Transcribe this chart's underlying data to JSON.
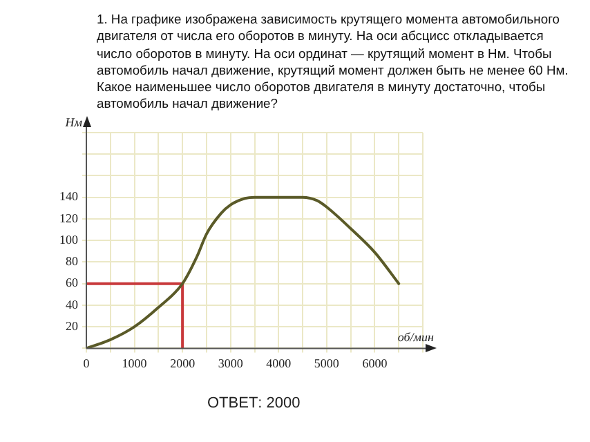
{
  "chart_data": {
    "type": "line",
    "title": "1. На графике изображена зависимость крутящего момента автомобильного двигателя от числа его оборотов в минуту. На оси абсцисс откладывается число оборотов в минуту. На оси ординат — крутящий момент в Нм. Чтобы автомобиль начал движение, крутящий момент должен быть не менее 60 Нм. Какое наименьшее число оборотов двигателя в минуту достаточно, чтобы автомобиль начал движение?",
    "xlabel": "об/мин",
    "ylabel": "Нм",
    "annotations": [
      "ОТВЕТ: 2000"
    ],
    "series": [
      {
        "color": "#5a5a28",
        "x": [
          0,
          500,
          1000,
          1500,
          2000,
          2300,
          2500,
          2800,
          3000,
          3300,
          3500,
          4000,
          4500,
          4800,
          5000,
          5500,
          6000,
          6500
        ],
        "values": [
          0,
          8,
          20,
          38,
          60,
          85,
          106,
          125,
          133,
          139,
          140,
          140,
          140,
          137,
          131,
          111,
          89,
          60
        ]
      },
      {
        "color": "#c8383a",
        "x": [
          0,
          2000,
          2000
        ],
        "values": [
          60,
          60,
          0
        ]
      }
    ],
    "xlim": [
      0,
      7000
    ],
    "xticks": [
      0,
      {
        "value": 500,
        "label": null
      },
      1000,
      {
        "value": 1500,
        "label": null
      },
      2000,
      {
        "value": 2500,
        "label": null
      },
      3000,
      {
        "value": 3500,
        "label": null
      },
      4000,
      {
        "value": 4500,
        "label": null
      },
      5000,
      {
        "value": 5500,
        "label": null
      },
      6000,
      {
        "value": 6500,
        "label": null
      },
      {
        "value": 7000,
        "label": null
      }
    ],
    "ylim": [
      0,
      200
    ],
    "yticks": [
      {
        "value": 0,
        "label": null
      },
      20,
      40,
      60,
      80,
      100,
      120,
      140,
      {
        "value": 160,
        "label": null
      },
      {
        "value": 180,
        "label": null
      },
      {
        "value": 200,
        "label": null
      }
    ],
    "grid": true,
    "legend": false,
    "marker": "none",
    "line_style": "solid"
  }
}
